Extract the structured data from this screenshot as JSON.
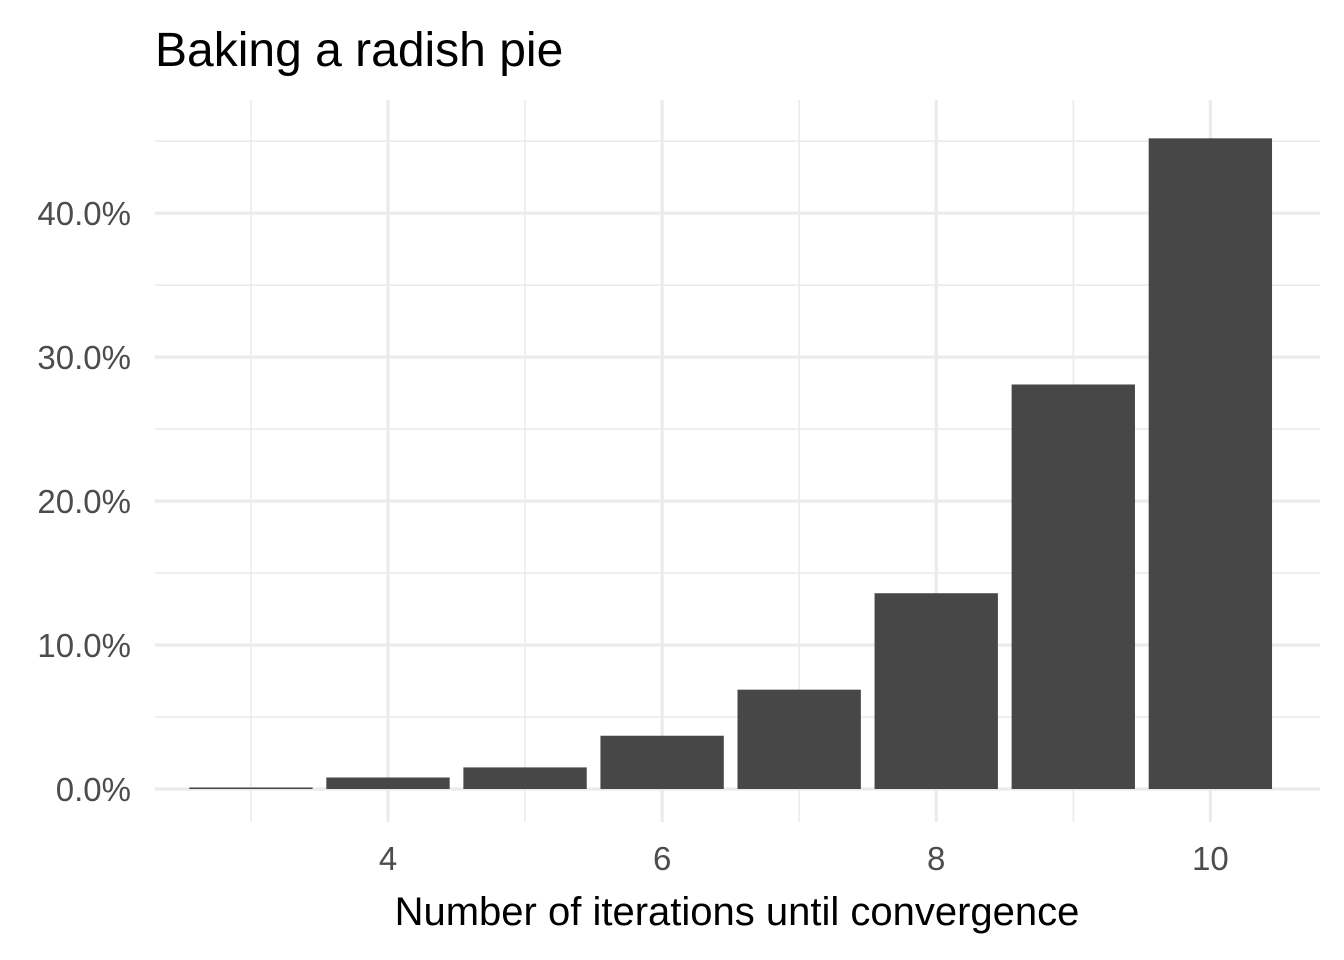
{
  "chart_data": {
    "type": "bar",
    "title": "Baking a radish pie",
    "xlabel": "Number of iterations until convergence",
    "ylabel": "",
    "x": [
      3,
      4,
      5,
      6,
      7,
      8,
      9,
      10
    ],
    "values": [
      0.1,
      0.8,
      1.5,
      3.7,
      6.9,
      13.6,
      28.1,
      45.2
    ],
    "y_unit": "percent",
    "xlim": [
      2.3,
      10.8
    ],
    "ylim": [
      0,
      45.5
    ],
    "x_ticks": [
      4,
      6,
      8,
      10
    ],
    "x_tick_labels": [
      "4",
      "6",
      "8",
      "10"
    ],
    "y_ticks": [
      0,
      10,
      20,
      30,
      40
    ],
    "y_tick_labels": [
      "0.0%",
      "10.0%",
      "20.0%",
      "30.0%",
      "40.0%"
    ],
    "bar_color": "#474747",
    "grid": true,
    "legend": "none"
  }
}
